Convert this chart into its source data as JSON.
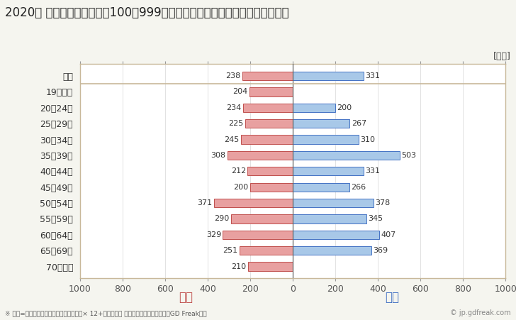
{
  "title": "2020年 民間企業（従業者数100～999人）フルタイム労働者の男女別平均年収",
  "unit_label": "[万円]",
  "categories": [
    "全体",
    "19歳以下",
    "20～24歳",
    "25～29歳",
    "30～34歳",
    "35～39歳",
    "40～44歳",
    "45～49歳",
    "50～54歳",
    "55～59歳",
    "60～64歳",
    "65～69歳",
    "70歳以上"
  ],
  "female_values": [
    238,
    204,
    234,
    225,
    245,
    308,
    212,
    200,
    371,
    290,
    329,
    251,
    210
  ],
  "male_values": [
    331,
    0,
    200,
    267,
    310,
    503,
    331,
    266,
    378,
    345,
    407,
    369,
    0
  ],
  "female_color": "#e8a0a0",
  "male_color": "#a8c8e8",
  "female_label": "女性",
  "male_label": "男性",
  "female_label_color": "#c0504d",
  "male_label_color": "#4472c4",
  "xlim": [
    -1000,
    1000
  ],
  "xticks": [
    -1000,
    -800,
    -600,
    -400,
    -200,
    0,
    200,
    400,
    600,
    800,
    1000
  ],
  "xtick_labels": [
    "1000",
    "800",
    "600",
    "400",
    "200",
    "0",
    "200",
    "400",
    "600",
    "800",
    "1000"
  ],
  "bg_color": "#f5f5ef",
  "plot_bg_color": "#f5f5ef",
  "chart_bg_color": "#ffffff",
  "footnote": "※ 年収=「きまって支給する現金給与額」× 12+「年間賞与 その他特別給与額」としてGD Freak推計",
  "watermark": "© jp.gdfreak.com",
  "bar_height": 0.55,
  "separator_color": "#c8b89a",
  "border_color": "#c8b89a",
  "title_fontsize": 12,
  "tick_fontsize": 9,
  "label_fontsize": 9,
  "value_fontsize": 8
}
